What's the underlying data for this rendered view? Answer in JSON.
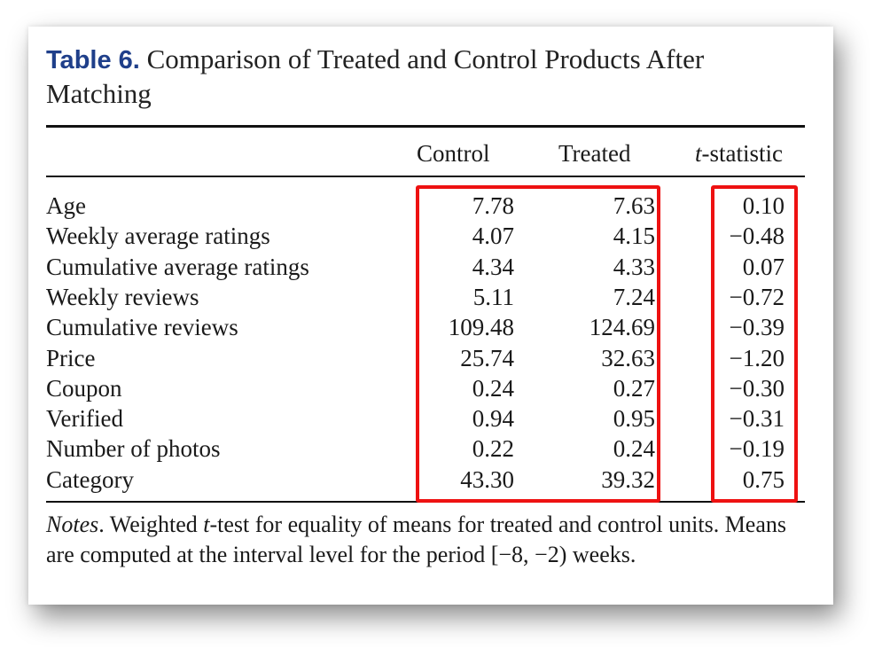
{
  "table": {
    "label": "Table 6.",
    "title": "Comparison of Treated and Control Products After Matching",
    "headers": {
      "control": "Control",
      "treated": "Treated",
      "t_prefix": "t",
      "t_suffix": "-statistic"
    },
    "rows": [
      {
        "name": "Age",
        "control": "7.78",
        "treated": "7.63",
        "t": "0.10"
      },
      {
        "name": "Weekly average ratings",
        "control": "4.07",
        "treated": "4.15",
        "t": "−0.48"
      },
      {
        "name": "Cumulative average ratings",
        "control": "4.34",
        "treated": "4.33",
        "t": "0.07"
      },
      {
        "name": "Weekly reviews",
        "control": "5.11",
        "treated": "7.24",
        "t": "−0.72"
      },
      {
        "name": "Cumulative reviews",
        "control": "109.48",
        "treated": "124.69",
        "t": "−0.39"
      },
      {
        "name": "Price",
        "control": "25.74",
        "treated": "32.63",
        "t": "−1.20"
      },
      {
        "name": "Coupon",
        "control": "0.24",
        "treated": "0.27",
        "t": "−0.30"
      },
      {
        "name": "Verified",
        "control": "0.94",
        "treated": "0.95",
        "t": "−0.31"
      },
      {
        "name": "Number of photos",
        "control": "0.22",
        "treated": "0.24",
        "t": "−0.19"
      },
      {
        "name": "Category",
        "control": "43.30",
        "treated": "39.32",
        "t": "0.75"
      }
    ],
    "notes": {
      "label": "Notes",
      "part1": ". Weighted ",
      "t": "t",
      "part2": "-test for equality of means for treated and control units. Means are computed at the interval level for the period [−8, −2) weeks."
    }
  },
  "highlight_color": "#ee1111"
}
